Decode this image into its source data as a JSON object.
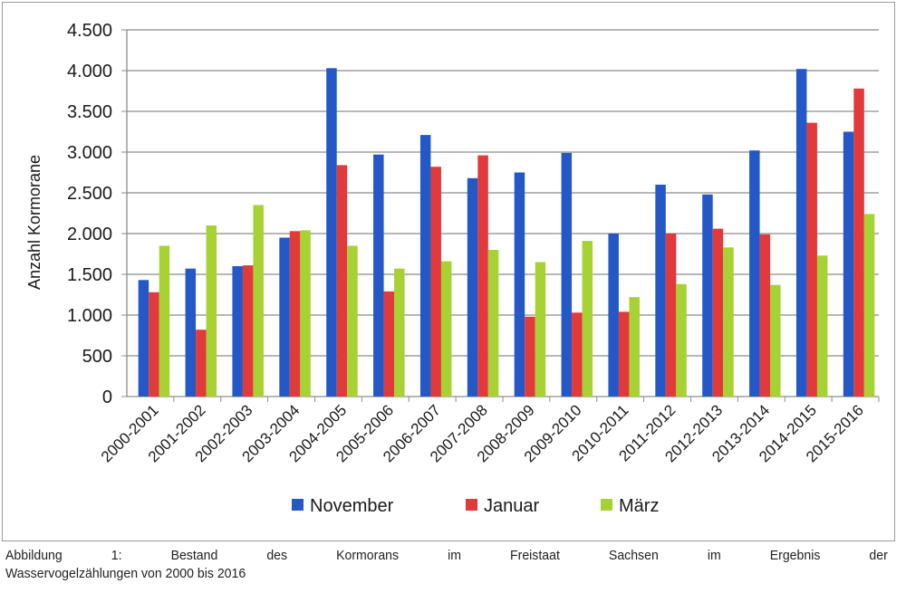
{
  "chart_data": {
    "type": "bar",
    "title": "",
    "xlabel": "",
    "ylabel": "Anzahl Kormorane",
    "ylim": [
      0,
      4500
    ],
    "yticks": [
      0,
      500,
      1000,
      1500,
      2000,
      2500,
      3000,
      3500,
      4000,
      4500
    ],
    "ytick_labels": [
      "0",
      "500",
      "1.000",
      "1.500",
      "2.000",
      "2.500",
      "3.000",
      "3.500",
      "4.000",
      "4.500"
    ],
    "grid": true,
    "legend_position": "bottom",
    "categories": [
      "2000-2001",
      "2001-2002",
      "2002-2003",
      "2003-2004",
      "2004-2005",
      "2005-2006",
      "2006-2007",
      "2007-2008",
      "2008-2009",
      "2009-2010",
      "2010-2011",
      "2011-2012",
      "2012-2013",
      "2013-2014",
      "2014-2015",
      "2015-2016"
    ],
    "series": [
      {
        "name": "November",
        "color": "#2458c6",
        "values": [
          1430,
          1570,
          1600,
          1950,
          4030,
          2970,
          3210,
          2680,
          2750,
          2990,
          2000,
          2600,
          2480,
          3020,
          4020,
          3250
        ]
      },
      {
        "name": "Januar",
        "color": "#e2393b",
        "values": [
          1280,
          820,
          1610,
          2030,
          2840,
          1290,
          2820,
          2960,
          980,
          1030,
          1040,
          2000,
          2060,
          1990,
          3360,
          3780
        ]
      },
      {
        "name": "März",
        "color": "#a6d234",
        "values": [
          1850,
          2100,
          2350,
          2040,
          1850,
          1570,
          1660,
          1800,
          1650,
          1910,
          1220,
          1380,
          1830,
          1370,
          1730,
          2240
        ]
      }
    ]
  },
  "caption": {
    "line1_words": [
      "Abbildung",
      "1:",
      "Bestand",
      "des",
      "Kormorans",
      "im",
      "Freistaat",
      "Sachsen",
      "im",
      "Ergebnis",
      "der"
    ],
    "line2": "Wasservogelzählungen von 2000 bis 2016"
  }
}
